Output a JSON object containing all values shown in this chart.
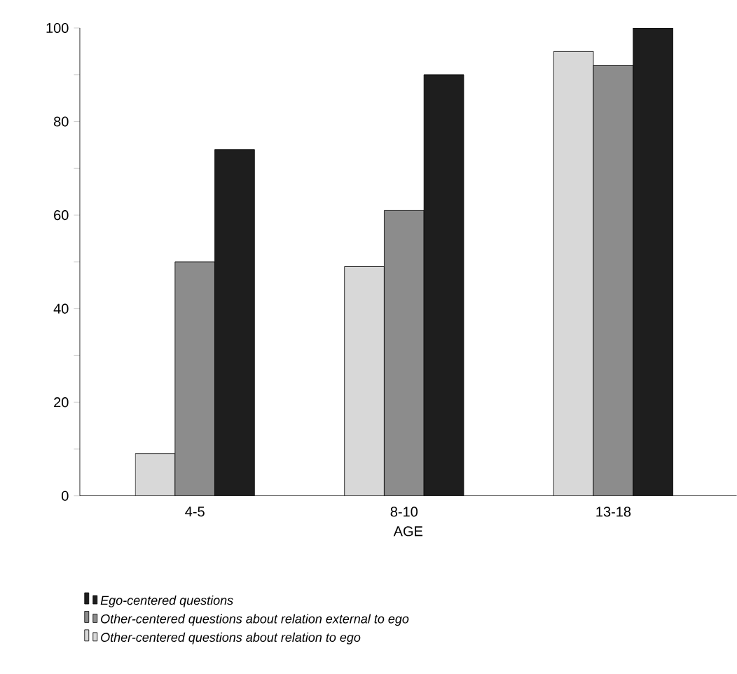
{
  "chart_data": {
    "type": "bar",
    "xlabel": "AGE",
    "categories": [
      "4-5",
      "8-10",
      "13-18"
    ],
    "series": [
      {
        "name": "Other-centered questions about relation to ego",
        "color": "#d8d8d8",
        "values": [
          9,
          49,
          95
        ]
      },
      {
        "name": "Other-centered questions about relation external to ego",
        "color": "#8c8c8c",
        "values": [
          50,
          61,
          92
        ]
      },
      {
        "name": "Ego-centered questions",
        "color": "#1e1e1e",
        "values": [
          74,
          90,
          100
        ]
      }
    ],
    "ylim": [
      0,
      100
    ],
    "yticks": [
      0,
      {
        "value": 10,
        "label": null
      },
      20,
      {
        "value": 30,
        "label": null
      },
      40,
      {
        "value": 50,
        "label": null
      },
      60,
      {
        "value": 70,
        "label": null
      },
      80,
      {
        "value": 90,
        "label": null
      },
      100
    ],
    "grid": false,
    "legend": "bottom"
  }
}
